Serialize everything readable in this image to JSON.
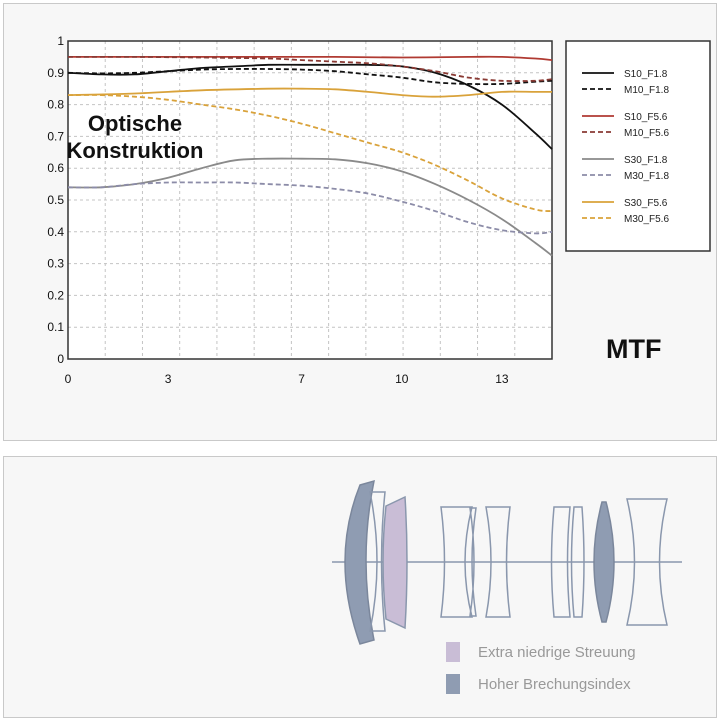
{
  "chart_data": {
    "type": "line",
    "title": "MTF",
    "xlim": [
      0,
      14.5
    ],
    "ylim": [
      0,
      1
    ],
    "xticks": [
      0,
      3,
      7,
      10,
      13
    ],
    "yticks": [
      0,
      0.1,
      0.2,
      0.3,
      0.4,
      0.5,
      0.6,
      0.7,
      0.8,
      0.9,
      1
    ],
    "ytick_labels": [
      "0",
      "0.1",
      "0.2",
      "0.3",
      "0.4",
      "0.5",
      "0.6",
      "0.7",
      "0.8",
      "0.9",
      "1"
    ],
    "grid": true,
    "legend_position": "top-right",
    "series": [
      {
        "name": "S10_F1.8",
        "color": "#111111",
        "style": "solid",
        "x": [
          0,
          1,
          2,
          3,
          4,
          5,
          6,
          7,
          8,
          9,
          10,
          11,
          12,
          13,
          14,
          14.5
        ],
        "y": [
          0.9,
          0.895,
          0.895,
          0.905,
          0.915,
          0.92,
          0.925,
          0.925,
          0.925,
          0.925,
          0.92,
          0.9,
          0.86,
          0.8,
          0.71,
          0.66
        ]
      },
      {
        "name": "M10_F1.8",
        "color": "#111111",
        "style": "dashed",
        "x": [
          0,
          1,
          2,
          3,
          4,
          5,
          6,
          7,
          8,
          9,
          10,
          11,
          12,
          13,
          14,
          14.5
        ],
        "y": [
          0.9,
          0.898,
          0.9,
          0.905,
          0.91,
          0.912,
          0.912,
          0.91,
          0.905,
          0.895,
          0.885,
          0.87,
          0.865,
          0.865,
          0.872,
          0.875
        ]
      },
      {
        "name": "S10_F5.6",
        "color": "#b03a32",
        "style": "solid",
        "x": [
          0,
          2,
          4,
          6,
          8,
          10,
          12,
          13,
          14,
          14.5
        ],
        "y": [
          0.95,
          0.95,
          0.95,
          0.95,
          0.95,
          0.948,
          0.95,
          0.95,
          0.945,
          0.94
        ]
      },
      {
        "name": "M10_F5.6",
        "color": "#8a3a34",
        "style": "dashed",
        "x": [
          0,
          2,
          4,
          6,
          7,
          8,
          9,
          10,
          11,
          12,
          13,
          14,
          14.5
        ],
        "y": [
          0.95,
          0.95,
          0.948,
          0.945,
          0.94,
          0.935,
          0.93,
          0.92,
          0.905,
          0.885,
          0.875,
          0.875,
          0.88
        ]
      },
      {
        "name": "S30_F1.8",
        "color": "#8a8a8a",
        "style": "solid",
        "x": [
          0,
          1,
          2,
          3,
          4,
          5,
          6,
          7,
          8,
          9,
          10,
          11,
          12,
          13,
          14,
          14.5
        ],
        "y": [
          0.54,
          0.54,
          0.55,
          0.57,
          0.6,
          0.625,
          0.63,
          0.63,
          0.628,
          0.615,
          0.59,
          0.55,
          0.5,
          0.44,
          0.365,
          0.325
        ]
      },
      {
        "name": "M30_F1.8",
        "color": "#8c8ca8",
        "style": "dashed",
        "x": [
          0,
          1,
          2,
          3,
          4,
          5,
          6,
          7,
          8,
          9,
          10,
          11,
          12,
          13,
          14,
          14.5
        ],
        "y": [
          0.54,
          0.54,
          0.55,
          0.555,
          0.555,
          0.555,
          0.55,
          0.545,
          0.535,
          0.52,
          0.495,
          0.465,
          0.43,
          0.405,
          0.395,
          0.4
        ]
      },
      {
        "name": "S30_F5.6",
        "color": "#d9a23a",
        "style": "solid",
        "x": [
          0,
          2,
          4,
          6,
          7,
          8,
          9,
          10,
          11,
          12,
          13,
          14,
          14.5
        ],
        "y": [
          0.83,
          0.835,
          0.845,
          0.85,
          0.85,
          0.848,
          0.84,
          0.83,
          0.825,
          0.83,
          0.84,
          0.84,
          0.84
        ]
      },
      {
        "name": "M30_F5.6",
        "color": "#d9a23a",
        "style": "dashed",
        "x": [
          0,
          1,
          2,
          3,
          4,
          5,
          6,
          7,
          8,
          9,
          10,
          11,
          12,
          13,
          14,
          14.5
        ],
        "y": [
          0.83,
          0.83,
          0.825,
          0.815,
          0.8,
          0.785,
          0.765,
          0.74,
          0.71,
          0.68,
          0.65,
          0.61,
          0.56,
          0.505,
          0.47,
          0.465
        ]
      }
    ]
  },
  "optics": {
    "title_line1": "Optische",
    "title_line2": "Konstruktion",
    "legend": [
      {
        "label": "Extra niedrige Streuung",
        "color": "#c9bdd6"
      },
      {
        "label": "Hoher Brechungsindex",
        "color": "#8f9cb2"
      }
    ]
  }
}
